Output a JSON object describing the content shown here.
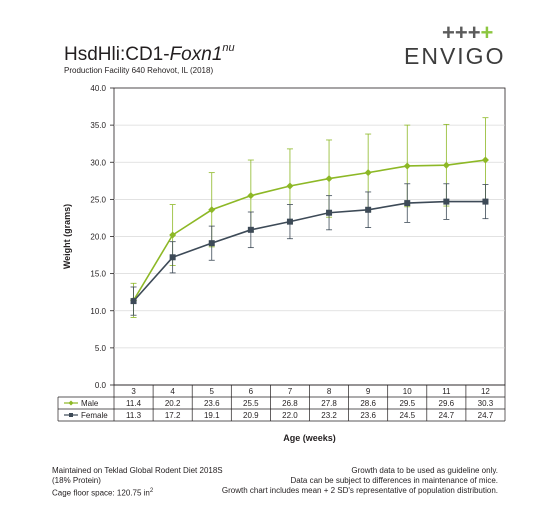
{
  "title": {
    "strain": "HsdHli:CD1-",
    "gene": "Foxn1",
    "sup": "nu"
  },
  "subtitle": "Production Facility 640 Rehovot, IL (2018)",
  "logo": {
    "plus_gray": "+++",
    "plus_green": "+",
    "word": "ENVIGO"
  },
  "colors": {
    "male": "#8db826",
    "female": "#3d4a57",
    "grid": "#d9d9d9"
  },
  "chart_data": {
    "type": "line",
    "ylabel": "Weight (grams)",
    "xlabel": "Age (weeks)",
    "ylim": [
      0,
      40
    ],
    "yticks": [
      "0.0",
      "5.0",
      "10.0",
      "15.0",
      "20.0",
      "25.0",
      "30.0",
      "35.0",
      "40.0"
    ],
    "categories": [
      "3",
      "4",
      "5",
      "6",
      "7",
      "8",
      "9",
      "10",
      "11",
      "12"
    ],
    "series": [
      {
        "name": "Male",
        "values": [
          11.4,
          20.2,
          23.6,
          25.5,
          26.8,
          27.8,
          28.6,
          29.5,
          29.6,
          30.3
        ],
        "error_upper": [
          13.7,
          24.3,
          28.6,
          30.3,
          31.8,
          33.0,
          33.8,
          35.0,
          35.1,
          36.0
        ],
        "error_lower": [
          9.1,
          16.1,
          18.6,
          20.7,
          21.8,
          22.6,
          23.4,
          24.0,
          24.1,
          24.6
        ]
      },
      {
        "name": "Female",
        "values": [
          11.3,
          17.2,
          19.1,
          20.9,
          22.0,
          23.2,
          23.6,
          24.5,
          24.7,
          24.7
        ],
        "error_upper": [
          13.2,
          19.3,
          21.4,
          23.3,
          24.3,
          25.5,
          26.0,
          27.1,
          27.1,
          27.0
        ],
        "error_lower": [
          9.4,
          15.1,
          16.8,
          18.5,
          19.7,
          20.9,
          21.2,
          21.9,
          22.3,
          22.4
        ]
      }
    ]
  },
  "notes": {
    "left": [
      "Maintained on Teklad Global Rodent Diet 2018S",
      "(18% Protein)",
      "Cage floor space: 120.75 in"
    ],
    "left_sup": "2",
    "right": [
      "Growth data to be used as guideline only.",
      "Data can be subject to differences in maintenance of mice.",
      "Growth chart includes mean + 2 SD's representative of population distribution."
    ]
  }
}
